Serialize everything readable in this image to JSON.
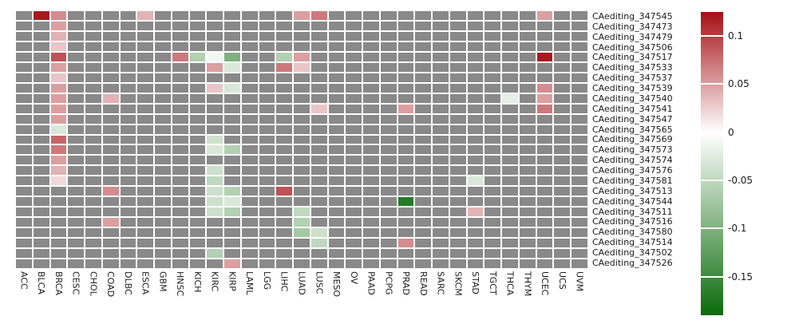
{
  "chart_data": {
    "type": "heatmap",
    "rows": [
      "CAediting_347545",
      "CAediting_347473",
      "CAediting_347479",
      "CAediting_347506",
      "CAediting_347517",
      "CAediting_347533",
      "CAediting_347537",
      "CAediting_347539",
      "CAediting_347540",
      "CAediting_347541",
      "CAediting_347547",
      "CAediting_347565",
      "CAediting_347569",
      "CAediting_347573",
      "CAediting_347574",
      "CAediting_347576",
      "CAediting_347581",
      "CAediting_347513",
      "CAediting_347544",
      "CAediting_347511",
      "CAediting_347516",
      "CAediting_347580",
      "CAediting_347514",
      "CAediting_347502",
      "CAediting_347526"
    ],
    "columns": [
      "ACC",
      "BLCA",
      "BRCA",
      "CESC",
      "CHOL",
      "COAD",
      "DLBC",
      "ESCA",
      "GBM",
      "HNSC",
      "KICH",
      "KIRC",
      "KIRP",
      "LAML",
      "LGG",
      "LIHC",
      "LUAD",
      "LUSC",
      "MESO",
      "OV",
      "PAAD",
      "PCPG",
      "PRAD",
      "READ",
      "SARC",
      "SKCM",
      "STAD",
      "TGCT",
      "THCA",
      "THYM",
      "UCEC",
      "UCS",
      "UVM"
    ],
    "scale": {
      "vmax": 0.125,
      "vmin": -0.19
    },
    "colors": {
      "positive_max": "#a50f15",
      "zero": "#ffffff",
      "negative_min": "#0b6b0b",
      "na": "#898989"
    },
    "legend_ticks": [
      {
        "label": "0.1",
        "value": 0.1
      },
      {
        "label": "0.05",
        "value": 0.05
      },
      {
        "label": "0",
        "value": 0
      },
      {
        "label": "-0.05",
        "value": -0.05
      },
      {
        "label": "-0.1",
        "value": -0.1
      },
      {
        "label": "-0.15",
        "value": -0.15
      }
    ],
    "cells": [
      {
        "row": "CAediting_347545",
        "col": "BLCA",
        "value": 0.12
      },
      {
        "row": "CAediting_347545",
        "col": "BRCA",
        "value": 0.06
      },
      {
        "row": "CAediting_347545",
        "col": "ESCA",
        "value": 0.04
      },
      {
        "row": "CAediting_347545",
        "col": "LUAD",
        "value": 0.05
      },
      {
        "row": "CAediting_347545",
        "col": "LUSC",
        "value": 0.07
      },
      {
        "row": "CAediting_347545",
        "col": "UCEC",
        "value": 0.05
      },
      {
        "row": "CAediting_347473",
        "col": "BRCA",
        "value": 0.05
      },
      {
        "row": "CAediting_347479",
        "col": "BRCA",
        "value": 0.04
      },
      {
        "row": "CAediting_347506",
        "col": "BRCA",
        "value": 0.03
      },
      {
        "row": "CAediting_347517",
        "col": "BRCA",
        "value": 0.09
      },
      {
        "row": "CAediting_347517",
        "col": "HNSC",
        "value": 0.07
      },
      {
        "row": "CAediting_347517",
        "col": "KICH",
        "value": -0.06
      },
      {
        "row": "CAediting_347517",
        "col": "KIRC",
        "value": -0.01
      },
      {
        "row": "CAediting_347517",
        "col": "KIRP",
        "value": -0.1
      },
      {
        "row": "CAediting_347517",
        "col": "LIHC",
        "value": -0.06
      },
      {
        "row": "CAediting_347517",
        "col": "LUAD",
        "value": 0.05
      },
      {
        "row": "CAediting_347517",
        "col": "UCEC",
        "value": 0.12
      },
      {
        "row": "CAediting_347533",
        "col": "BRCA",
        "value": 0.05
      },
      {
        "row": "CAediting_347533",
        "col": "KIRC",
        "value": 0.05
      },
      {
        "row": "CAediting_347533",
        "col": "KIRP",
        "value": -0.03
      },
      {
        "row": "CAediting_347533",
        "col": "LIHC",
        "value": 0.07
      },
      {
        "row": "CAediting_347533",
        "col": "LUAD",
        "value": 0.03
      },
      {
        "row": "CAediting_347537",
        "col": "BRCA",
        "value": 0.03
      },
      {
        "row": "CAediting_347539",
        "col": "BRCA",
        "value": 0.05
      },
      {
        "row": "CAediting_347539",
        "col": "KIRC",
        "value": 0.03
      },
      {
        "row": "CAediting_347539",
        "col": "KIRP",
        "value": -0.03
      },
      {
        "row": "CAediting_347539",
        "col": "UCEC",
        "value": 0.06
      },
      {
        "row": "CAediting_347540",
        "col": "BRCA",
        "value": 0.05
      },
      {
        "row": "CAediting_347540",
        "col": "COAD",
        "value": 0.04
      },
      {
        "row": "CAediting_347540",
        "col": "THCA",
        "value": -0.02
      },
      {
        "row": "CAediting_347540",
        "col": "UCEC",
        "value": 0.05
      },
      {
        "row": "CAediting_347541",
        "col": "BRCA",
        "value": 0.05
      },
      {
        "row": "CAediting_347541",
        "col": "LUSC",
        "value": 0.03
      },
      {
        "row": "CAediting_347541",
        "col": "PRAD",
        "value": 0.05
      },
      {
        "row": "CAediting_347541",
        "col": "UCEC",
        "value": 0.07
      },
      {
        "row": "CAediting_347547",
        "col": "BRCA",
        "value": 0.05
      },
      {
        "row": "CAediting_347565",
        "col": "BRCA",
        "value": -0.03
      },
      {
        "row": "CAediting_347569",
        "col": "BRCA",
        "value": 0.08
      },
      {
        "row": "CAediting_347569",
        "col": "KIRC",
        "value": -0.04
      },
      {
        "row": "CAediting_347573",
        "col": "BRCA",
        "value": 0.07
      },
      {
        "row": "CAediting_347573",
        "col": "KIRC",
        "value": -0.03
      },
      {
        "row": "CAediting_347573",
        "col": "KIRP",
        "value": -0.06
      },
      {
        "row": "CAediting_347574",
        "col": "BRCA",
        "value": 0.05
      },
      {
        "row": "CAediting_347576",
        "col": "BRCA",
        "value": 0.04
      },
      {
        "row": "CAediting_347576",
        "col": "KIRC",
        "value": -0.04
      },
      {
        "row": "CAediting_347581",
        "col": "BRCA",
        "value": 0.02
      },
      {
        "row": "CAediting_347581",
        "col": "KIRC",
        "value": -0.05
      },
      {
        "row": "CAediting_347581",
        "col": "STAD",
        "value": -0.03
      },
      {
        "row": "CAediting_347513",
        "col": "COAD",
        "value": 0.06
      },
      {
        "row": "CAediting_347513",
        "col": "KIRC",
        "value": -0.04
      },
      {
        "row": "CAediting_347513",
        "col": "KIRP",
        "value": -0.06
      },
      {
        "row": "CAediting_347513",
        "col": "LIHC",
        "value": 0.09
      },
      {
        "row": "CAediting_347544",
        "col": "KIRC",
        "value": -0.04
      },
      {
        "row": "CAediting_347544",
        "col": "KIRP",
        "value": -0.03
      },
      {
        "row": "CAediting_347544",
        "col": "PRAD",
        "value": -0.17
      },
      {
        "row": "CAediting_347511",
        "col": "KIRC",
        "value": -0.04
      },
      {
        "row": "CAediting_347511",
        "col": "KIRP",
        "value": -0.06
      },
      {
        "row": "CAediting_347511",
        "col": "LUAD",
        "value": -0.05
      },
      {
        "row": "CAediting_347511",
        "col": "STAD",
        "value": 0.04
      },
      {
        "row": "CAediting_347516",
        "col": "COAD",
        "value": 0.05
      },
      {
        "row": "CAediting_347516",
        "col": "LUAD",
        "value": -0.06
      },
      {
        "row": "CAediting_347580",
        "col": "LUAD",
        "value": -0.07
      },
      {
        "row": "CAediting_347580",
        "col": "LUSC",
        "value": -0.04
      },
      {
        "row": "CAediting_347514",
        "col": "LUSC",
        "value": -0.05
      },
      {
        "row": "CAediting_347514",
        "col": "PRAD",
        "value": 0.06
      },
      {
        "row": "CAediting_347502",
        "col": "KIRC",
        "value": -0.06
      },
      {
        "row": "CAediting_347526",
        "col": "KIRP",
        "value": 0.05
      }
    ]
  }
}
